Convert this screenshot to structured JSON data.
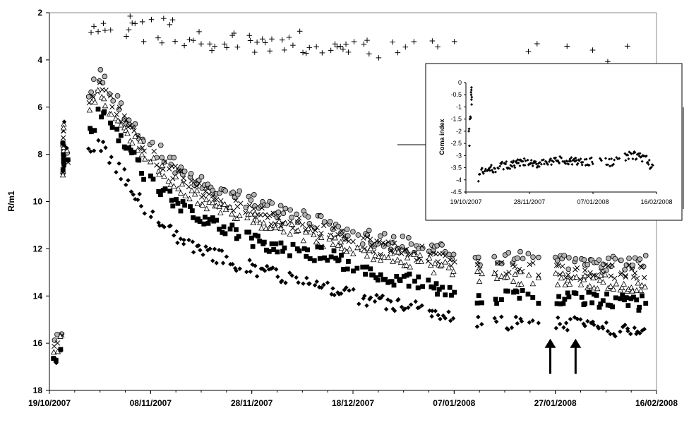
{
  "chart_data": [
    {
      "type": "scatter",
      "title": "",
      "xlabel": "",
      "ylabel": "R/m1",
      "y_inverted": true,
      "ylim": [
        2,
        18
      ],
      "yticks": [
        "2",
        "4",
        "6",
        "8",
        "10",
        "12",
        "14",
        "16",
        "18"
      ],
      "xlim": [
        "2007-10-19",
        "2008-02-16"
      ],
      "xticks": [
        "19/10/2007",
        "08/11/2007",
        "28/11/2007",
        "18/12/2007",
        "07/01/2008",
        "27/01/2008",
        "16/02/2008"
      ],
      "grid": false,
      "legend": "none",
      "annotations": [
        {
          "type": "arrow-up",
          "x": "2008-01-26",
          "y_from": 17.3,
          "y_to": 15.9
        },
        {
          "type": "arrow-up",
          "x": "2008-01-31",
          "y_from": 17.3,
          "y_to": 15.9
        }
      ],
      "series": [
        {
          "marker": "plus",
          "x": [
            "2007-10-24",
            "2007-10-29",
            "2007-11-03",
            "2007-11-08",
            "2007-11-13",
            "2007-11-18",
            "2007-11-23",
            "2007-11-28",
            "2007-12-03",
            "2007-12-08",
            "2007-12-13",
            "2007-12-18",
            "2007-12-25",
            "2008-01-01",
            "2008-01-06",
            "2008-01-11",
            "2008-01-18",
            "2008-01-25",
            "2008-02-01",
            "2008-02-06",
            "2008-02-10"
          ],
          "y": [
            2.4,
            2.5,
            2.6,
            2.7,
            2.8,
            3.0,
            3.2,
            3.3,
            3.3,
            3.3,
            3.3,
            3.4,
            3.5,
            3.5,
            3.5,
            3.5,
            4.0,
            3.8,
            3.9,
            3.9,
            3.9
          ]
        },
        {
          "marker": "circle-gray",
          "x": [
            "2007-10-24",
            "2007-10-29",
            "2007-11-03",
            "2007-11-08",
            "2007-11-13",
            "2007-11-18",
            "2007-11-23",
            "2007-11-28",
            "2007-12-03",
            "2007-12-08",
            "2007-12-13",
            "2007-12-18",
            "2007-12-25",
            "2008-01-01",
            "2008-01-06",
            "2008-01-11",
            "2008-01-18",
            "2008-01-25",
            "2008-02-01",
            "2008-02-06",
            "2008-02-10"
          ],
          "y": [
            6.2,
            4.6,
            6.4,
            7.6,
            8.5,
            9.2,
            9.7,
            10.0,
            10.4,
            10.7,
            11.0,
            11.4,
            11.7,
            11.9,
            12.2,
            12.4,
            12.4,
            12.5,
            12.6,
            12.6,
            12.6
          ]
        },
        {
          "marker": "x",
          "x": [
            "2007-10-24",
            "2007-10-29",
            "2007-11-03",
            "2007-11-08",
            "2007-11-13",
            "2007-11-18",
            "2007-11-23",
            "2007-11-28",
            "2007-12-03",
            "2007-12-08",
            "2007-12-13",
            "2007-12-18",
            "2007-12-25",
            "2008-01-01",
            "2008-01-06",
            "2008-01-11",
            "2008-01-18",
            "2008-01-25",
            "2008-02-01",
            "2008-02-06",
            "2008-02-10"
          ],
          "y": [
            6.6,
            5.0,
            6.7,
            8.0,
            8.8,
            9.5,
            10.1,
            10.4,
            10.8,
            11.0,
            11.3,
            11.7,
            12.0,
            12.2,
            12.5,
            12.8,
            12.8,
            12.9,
            13.0,
            13.0,
            13.0
          ]
        },
        {
          "marker": "triangle-open",
          "x": [
            "2007-10-24",
            "2007-10-29",
            "2007-11-03",
            "2007-11-08",
            "2007-11-13",
            "2007-11-18",
            "2007-11-23",
            "2007-11-28",
            "2007-12-03",
            "2007-12-08",
            "2007-12-13",
            "2007-12-18",
            "2007-12-25",
            "2008-01-01",
            "2008-01-06",
            "2008-01-11",
            "2008-01-18",
            "2008-01-25",
            "2008-02-01",
            "2008-02-06",
            "2008-02-10"
          ],
          "y": [
            7.0,
            5.5,
            7.0,
            8.3,
            9.2,
            9.9,
            10.5,
            10.8,
            11.1,
            11.4,
            11.7,
            12.1,
            12.4,
            12.6,
            12.9,
            13.2,
            13.2,
            13.3,
            13.4,
            13.4,
            13.5
          ]
        },
        {
          "marker": "square-filled",
          "x": [
            "2007-10-24",
            "2007-10-29",
            "2007-11-03",
            "2007-11-08",
            "2007-11-13",
            "2007-11-18",
            "2007-11-23",
            "2007-11-28",
            "2007-12-03",
            "2007-12-08",
            "2007-12-13",
            "2007-12-18",
            "2007-12-25",
            "2008-01-01",
            "2008-01-06",
            "2008-01-11",
            "2008-01-18",
            "2008-01-25",
            "2008-02-01",
            "2008-02-06",
            "2008-02-10"
          ],
          "y": [
            8.2,
            6.2,
            7.6,
            9.2,
            10.1,
            10.7,
            11.2,
            11.6,
            11.9,
            12.1,
            12.3,
            12.7,
            13.2,
            13.4,
            13.8,
            14.0,
            14.0,
            14.0,
            14.1,
            14.2,
            14.3
          ]
        },
        {
          "marker": "diamond-filled",
          "x": [
            "2007-10-24",
            "2007-10-29",
            "2007-11-03",
            "2007-11-08",
            "2007-11-13",
            "2007-11-18",
            "2007-11-23",
            "2007-11-28",
            "2007-12-03",
            "2007-12-08",
            "2007-12-13",
            "2007-12-18",
            "2007-12-25",
            "2008-01-01",
            "2008-01-06",
            "2008-01-11",
            "2008-01-18",
            "2008-01-25",
            "2008-02-01",
            "2008-02-06",
            "2008-02-10"
          ],
          "y": [
            8.8,
            7.5,
            9.0,
            10.6,
            11.4,
            12.0,
            12.5,
            12.8,
            13.1,
            13.3,
            13.6,
            14.0,
            14.3,
            14.6,
            14.9,
            15.1,
            15.2,
            15.1,
            15.2,
            15.4,
            15.5
          ]
        }
      ]
    },
    {
      "type": "scatter",
      "title": "",
      "xlabel": "",
      "ylabel": "Coma index",
      "ylim": [
        -4.5,
        0
      ],
      "yticks": [
        "0",
        "-0.5",
        "-1",
        "-1.5",
        "-2",
        "-2.5",
        "-3",
        "-3.5",
        "-4",
        "-4.5"
      ],
      "xlim": [
        "2007-10-19",
        "2008-02-16"
      ],
      "xticks": [
        "19/10/2007",
        "28/11/2007",
        "07/01/2008",
        "16/02/2008"
      ],
      "grid": false,
      "legend": "none",
      "series": [
        {
          "marker": "diamond-filled",
          "x": [
            "2007-10-21",
            "2007-10-23",
            "2007-10-24",
            "2007-10-26",
            "2007-10-28",
            "2007-11-02",
            "2007-11-07",
            "2007-11-12",
            "2007-11-17",
            "2007-11-22",
            "2007-11-27",
            "2007-12-02",
            "2007-12-07",
            "2007-12-12",
            "2007-12-17",
            "2007-12-22",
            "2007-12-27",
            "2008-01-01",
            "2008-01-06",
            "2008-01-11",
            "2008-01-16",
            "2008-01-21",
            "2008-01-26",
            "2008-01-31",
            "2008-02-05",
            "2008-02-10",
            "2008-02-14"
          ],
          "y": [
            -2.0,
            -1.4,
            -0.4,
            -4.0,
            -3.7,
            -3.6,
            -3.5,
            -3.4,
            -3.4,
            -3.3,
            -3.3,
            -3.4,
            -3.2,
            -3.3,
            -3.2,
            -3.3,
            -3.2,
            -3.3,
            -3.2,
            -3.2,
            -3.3,
            -3.2,
            -3.1,
            -3.0,
            -3.0,
            -3.2,
            -3.6
          ]
        }
      ]
    }
  ]
}
